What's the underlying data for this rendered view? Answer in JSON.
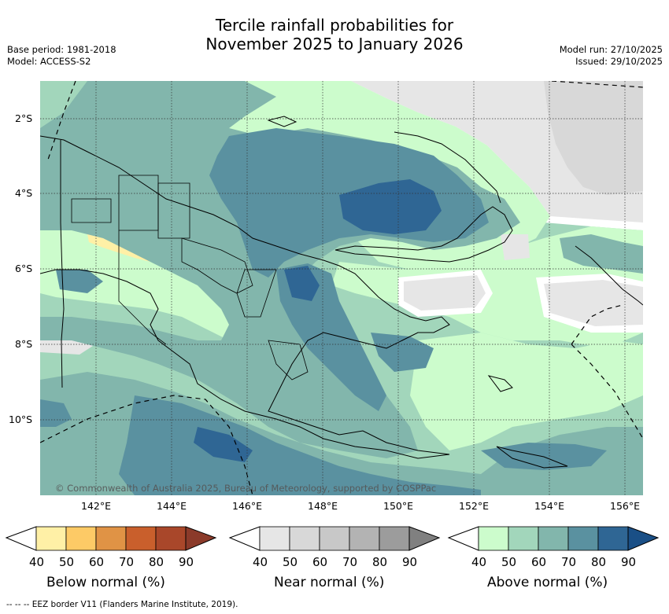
{
  "title": {
    "line1": "Tercile rainfall probabilities for",
    "line2": "November 2025 to January 2026"
  },
  "meta_left": {
    "base_period": "Base period: 1981-2018",
    "model": "Model: ACCESS-S2"
  },
  "meta_right": {
    "model_run": "Model run: 27/10/2025",
    "issued": "Issued: 29/10/2025"
  },
  "map": {
    "lat_labels": [
      "2°S",
      "4°S",
      "6°S",
      "8°S",
      "10°S"
    ],
    "lon_labels": [
      "142°E",
      "144°E",
      "146°E",
      "148°E",
      "150°E",
      "152°E",
      "154°E",
      "156°E"
    ],
    "copyright": "© Commonwealth of Australia 2025, Bureau of Meteorology, supported by COSPPac"
  },
  "colorbars": [
    {
      "title": "Below normal (%)",
      "ticks": [
        "40",
        "50",
        "60",
        "70",
        "80",
        "90"
      ],
      "colors": [
        "#fff0a6",
        "#fdca66",
        "#e09345",
        "#c95f2c",
        "#a9472a",
        "#8b3a2a"
      ]
    },
    {
      "title": "Near normal (%)",
      "ticks": [
        "40",
        "50",
        "60",
        "70",
        "80",
        "90"
      ],
      "colors": [
        "#e6e6e6",
        "#d8d8d8",
        "#c8c8c8",
        "#b3b3b3",
        "#9c9c9c",
        "#808080"
      ]
    },
    {
      "title": "Above normal (%)",
      "ticks": [
        "40",
        "50",
        "60",
        "70",
        "80",
        "90"
      ],
      "colors": [
        "#ccfccc",
        "#a2d6bb",
        "#82b6ac",
        "#5a91a0",
        "#2f6694",
        "#1a4f86"
      ]
    }
  ],
  "footer": "--  --  -- EEZ border V11 (Flanders Marine Institute, 2019)."
}
